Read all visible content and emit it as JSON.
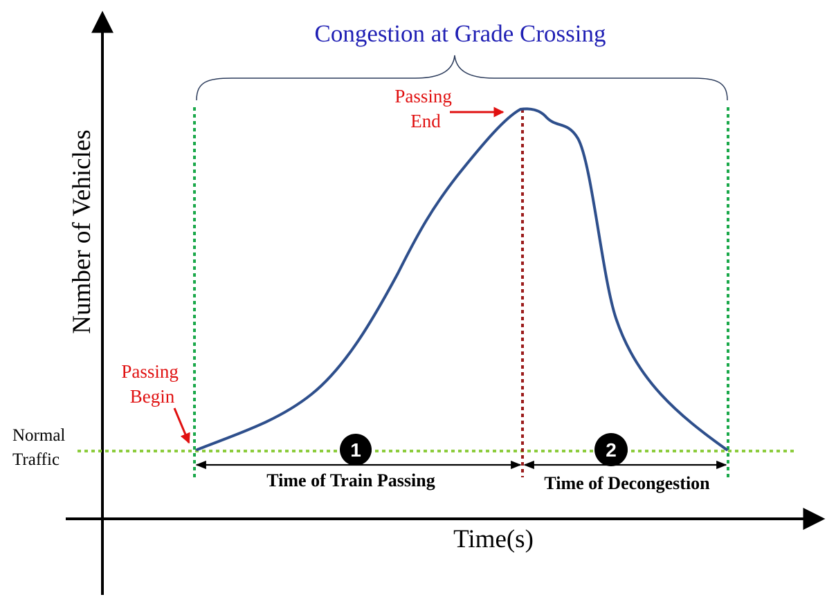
{
  "title": "Congestion at Grade Crossing",
  "axes": {
    "y_label": "Number of Vehicles",
    "x_label": "Time(s)"
  },
  "labels": {
    "normal_traffic_line1": "Normal",
    "normal_traffic_line2": "Traffic",
    "passing_begin_line1": "Passing",
    "passing_begin_line2": "Begin",
    "passing_end_line1": "Passing",
    "passing_end_line2": "End"
  },
  "intervals": [
    {
      "marker": "1",
      "label": "Time of Train Passing"
    },
    {
      "marker": "2",
      "label": "Time of Decongestion"
    }
  ],
  "colors": {
    "title": "#1f1fb4",
    "curve": "#2e4f8c",
    "boundary_line": "#1aa84a",
    "passing_end_line": "#9b1b1b",
    "normal_traffic_line": "#8ccc3c",
    "annotation": "#e01010",
    "axis": "#000000",
    "marker_fill": "#000000"
  }
}
